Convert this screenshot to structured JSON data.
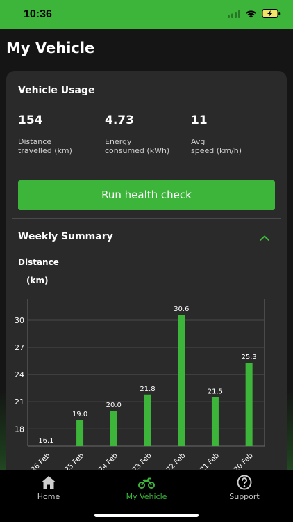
{
  "status": {
    "time": "10:36"
  },
  "header": {
    "title": "My Vehicle"
  },
  "usage": {
    "title": "Vehicle Usage",
    "stats": [
      {
        "value": "154",
        "label_line1": "Distance",
        "label_line2": "travelled (km)"
      },
      {
        "value": "4.73",
        "label_line1": "Energy",
        "label_line2": "consumed (kWh)"
      },
      {
        "value": "11",
        "label_line1": "Avg",
        "label_line2": "speed (km/h)"
      }
    ],
    "health_button": "Run health check"
  },
  "weekly": {
    "title": "Weekly Summary",
    "chart_label": "Distance",
    "chart_unit": "(km)"
  },
  "chart_data": {
    "type": "bar",
    "categories": [
      "26 Feb",
      "25 Feb",
      "24 Feb",
      "23 Feb",
      "22 Feb",
      "21 Feb",
      "20 Feb"
    ],
    "values": [
      16.1,
      19.0,
      20.0,
      21.8,
      30.6,
      21.5,
      25.3
    ],
    "value_labels": [
      "16.1",
      "19.0",
      "20.0",
      "21.8",
      "30.6",
      "21.5",
      "25.3"
    ],
    "yticks": [
      18,
      21,
      24,
      27,
      30
    ],
    "ylim": [
      16.1,
      32.3
    ],
    "grid": true,
    "bar_color": "#3db53a"
  },
  "tabs": [
    {
      "label": "Home",
      "icon": "home-icon",
      "active": false
    },
    {
      "label": "My Vehicle",
      "icon": "motorbike-icon",
      "active": true
    },
    {
      "label": "Support",
      "icon": "help-icon",
      "active": false
    }
  ],
  "colors": {
    "accent": "#3db53a",
    "card": "#2a2a2a",
    "background": "#151515"
  }
}
